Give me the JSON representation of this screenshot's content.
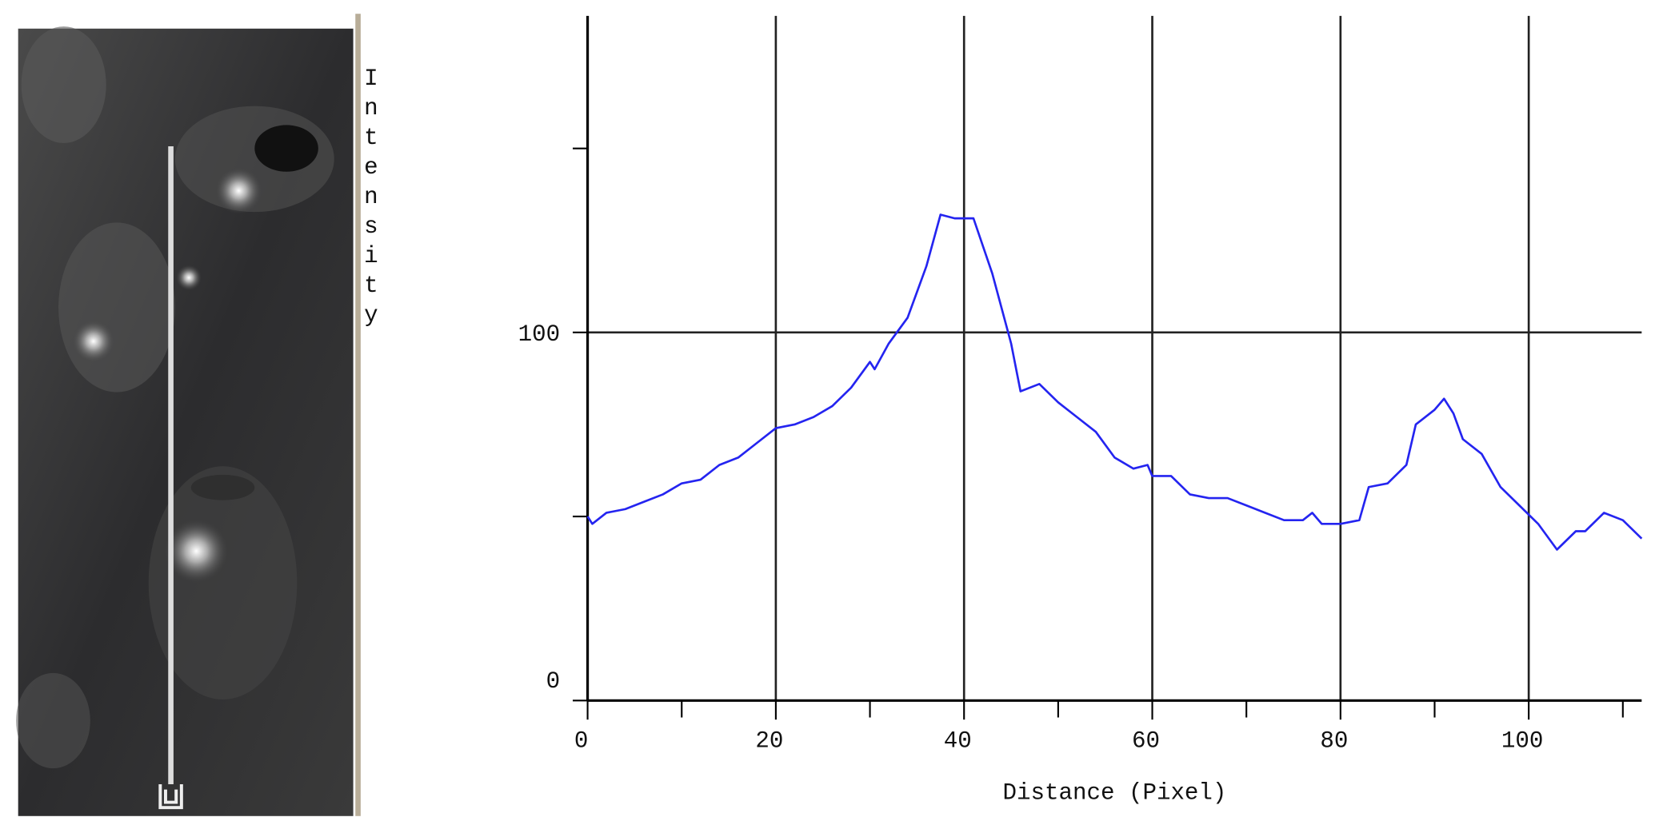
{
  "chart_data": {
    "type": "line",
    "y_label": "Intensity",
    "x_label": "Distance (Pixel)",
    "x": [
      0,
      0.5,
      2,
      4,
      6,
      8,
      10,
      12,
      14,
      16,
      18,
      20,
      22,
      24,
      26,
      28,
      30,
      30.5,
      32,
      34,
      36,
      37.5,
      39,
      41,
      43,
      45,
      46,
      48,
      50,
      52,
      54,
      56,
      58,
      59.5,
      60,
      62,
      64,
      66,
      68,
      70,
      72,
      74,
      76,
      77,
      78,
      80,
      82,
      83,
      85,
      87,
      88,
      90,
      91,
      92,
      93,
      95,
      97,
      99,
      101,
      103,
      105,
      106,
      108,
      110,
      112
    ],
    "values": [
      50,
      48,
      51,
      52,
      54,
      56,
      59,
      60,
      64,
      66,
      70,
      74,
      75,
      77,
      80,
      85,
      92,
      90,
      97,
      104,
      118,
      132,
      131,
      131,
      116,
      97,
      84,
      86,
      81,
      77,
      73,
      66,
      63,
      64,
      61,
      61,
      56,
      55,
      55,
      53,
      51,
      49,
      49,
      51,
      48,
      48,
      49,
      58,
      59,
      64,
      75,
      79,
      82,
      78,
      71,
      67,
      58,
      53,
      48,
      41,
      46,
      46,
      51,
      49,
      44
    ],
    "color": "#2424f0",
    "xlim": [
      0,
      112
    ],
    "ylim": [
      0,
      186
    ],
    "xticks": [
      0,
      20,
      40,
      60,
      80,
      100
    ],
    "xminorticks": [
      10,
      30,
      50,
      70,
      90,
      110
    ],
    "yticks": [
      0,
      100
    ],
    "yminorticks": [
      50,
      150
    ],
    "grid": true
  }
}
